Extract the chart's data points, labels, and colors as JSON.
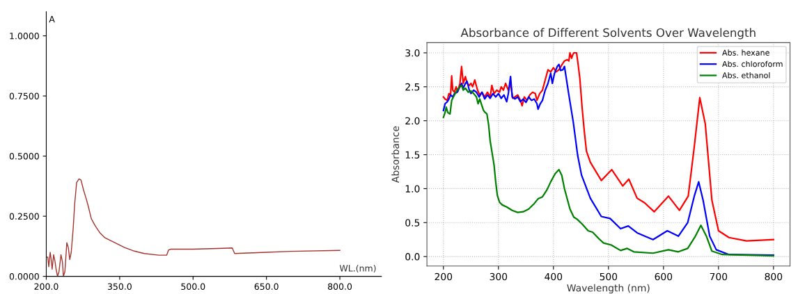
{
  "chart_data": [
    {
      "type": "line",
      "xlabel": "WL.(nm)",
      "ylabel": "A",
      "xlim": [
        200,
        885
      ],
      "ylim": [
        0,
        1.1
      ],
      "grid": false,
      "legend": false,
      "xticks": [
        {
          "value": 200,
          "label": "200.0"
        },
        {
          "value": 350,
          "label": "350.0"
        },
        {
          "value": 500,
          "label": "500.0"
        },
        {
          "value": 650,
          "label": "650.0"
        },
        {
          "value": 800,
          "label": "800.0"
        }
      ],
      "yticks": [
        {
          "value": 0,
          "label": "0.0000"
        },
        {
          "value": 0.25,
          "label": "0.2500"
        },
        {
          "value": 0.5,
          "label": "0.5000"
        },
        {
          "value": 0.75,
          "label": "0.7500"
        },
        {
          "value": 1.0,
          "label": "1.0000"
        }
      ],
      "x": [
        200,
        203,
        205,
        208,
        210,
        212,
        215,
        218,
        220,
        223,
        226,
        230,
        233,
        235,
        238,
        242,
        245,
        248,
        251,
        255,
        258,
        262,
        267,
        271,
        276,
        282,
        286,
        292,
        300,
        310,
        320,
        340,
        360,
        380,
        400,
        430,
        446,
        450,
        455,
        500,
        550,
        580,
        585,
        650,
        700,
        800
      ],
      "series": [
        {
          "color": "#a3322c",
          "values": [
            0.08,
            0.08,
            0.04,
            0.1,
            0.07,
            0.03,
            0.09,
            0.06,
            0.03,
            0.0,
            0.02,
            0.09,
            0.06,
            0.0,
            0.02,
            0.14,
            0.12,
            0.07,
            0.1,
            0.2,
            0.3,
            0.39,
            0.405,
            0.4,
            0.36,
            0.32,
            0.29,
            0.24,
            0.21,
            0.18,
            0.16,
            0.14,
            0.12,
            0.105,
            0.095,
            0.088,
            0.088,
            0.11,
            0.113,
            0.113,
            0.116,
            0.118,
            0.095,
            0.1,
            0.104,
            0.108
          ]
        }
      ]
    },
    {
      "type": "line",
      "title": "Absorbance of Different Solvents Over Wavelength",
      "xlabel": "Wavelength (nm)",
      "ylabel": "Absorbance",
      "xlim": [
        170,
        830
      ],
      "ylim": [
        -0.14,
        3.15
      ],
      "grid": true,
      "legend": "top right",
      "xticks": [
        200,
        300,
        400,
        500,
        600,
        700,
        800
      ],
      "yticks": [
        {
          "value": 0,
          "label": "0.0"
        },
        {
          "value": 0.5,
          "label": "0.5"
        },
        {
          "value": 1.0,
          "label": "1.0"
        },
        {
          "value": 1.5,
          "label": "1.5"
        },
        {
          "value": 2.0,
          "label": "2.0"
        },
        {
          "value": 2.5,
          "label": "2.5"
        },
        {
          "value": 3.0,
          "label": "3.0"
        }
      ],
      "series": [
        {
          "name": "Abs. hexane",
          "color": "#ff0000",
          "x": [
            200,
            203,
            207,
            210,
            213,
            215,
            217,
            220,
            223,
            226,
            230,
            233,
            236,
            240,
            243,
            247,
            250,
            253,
            257,
            262,
            266,
            270,
            275,
            280,
            285,
            288,
            292,
            297,
            302,
            305,
            309,
            313,
            318,
            322,
            326,
            330,
            335,
            340,
            343,
            347,
            352,
            357,
            362,
            367,
            370,
            375,
            380,
            385,
            390,
            395,
            400,
            405,
            410,
            415,
            420,
            425,
            428,
            430,
            433,
            435,
            437,
            442,
            445,
            448,
            452,
            456,
            460,
            467,
            487,
            506,
            526,
            537,
            552,
            566,
            583,
            609,
            629,
            645,
            656,
            666,
            676,
            688,
            700,
            719,
            751,
            800
          ],
          "values": [
            2.35,
            2.32,
            2.3,
            2.4,
            2.38,
            2.66,
            2.45,
            2.42,
            2.5,
            2.43,
            2.55,
            2.8,
            2.55,
            2.65,
            2.55,
            2.52,
            2.55,
            2.5,
            2.6,
            2.45,
            2.38,
            2.42,
            2.35,
            2.42,
            2.35,
            2.52,
            2.4,
            2.45,
            2.42,
            2.5,
            2.45,
            2.55,
            2.45,
            2.55,
            2.33,
            2.35,
            2.38,
            2.3,
            2.22,
            2.35,
            2.3,
            2.38,
            2.42,
            2.4,
            2.3,
            2.4,
            2.45,
            2.6,
            2.75,
            2.72,
            2.78,
            2.72,
            2.75,
            2.82,
            2.88,
            2.9,
            2.88,
            3.0,
            2.92,
            2.97,
            3.0,
            3.0,
            2.82,
            2.62,
            2.2,
            1.85,
            1.55,
            1.39,
            1.12,
            1.28,
            1.04,
            1.14,
            0.86,
            0.79,
            0.66,
            0.89,
            0.68,
            0.89,
            1.62,
            2.34,
            1.95,
            0.83,
            0.38,
            0.28,
            0.23,
            0.25
          ]
        },
        {
          "name": "Abs. chloroform",
          "color": "#0000ff",
          "x": [
            200,
            203,
            207,
            210,
            213,
            217,
            220,
            225,
            230,
            233,
            236,
            240,
            243,
            247,
            250,
            255,
            260,
            265,
            270,
            275,
            280,
            285,
            290,
            295,
            300,
            305,
            310,
            315,
            318,
            322,
            325,
            330,
            335,
            340,
            345,
            350,
            355,
            360,
            365,
            370,
            372,
            376,
            380,
            385,
            390,
            395,
            398,
            402,
            407,
            410,
            413,
            417,
            420,
            428,
            436,
            444,
            451,
            467,
            487,
            503,
            522,
            536,
            552,
            566,
            581,
            607,
            627,
            644,
            656,
            664,
            672,
            684,
            696,
            719,
            800
          ],
          "values": [
            2.15,
            2.25,
            2.28,
            2.32,
            2.38,
            2.35,
            2.4,
            2.42,
            2.5,
            2.55,
            2.48,
            2.55,
            2.58,
            2.45,
            2.4,
            2.45,
            2.42,
            2.35,
            2.42,
            2.32,
            2.38,
            2.33,
            2.4,
            2.35,
            2.4,
            2.33,
            2.38,
            2.28,
            2.4,
            2.65,
            2.35,
            2.32,
            2.35,
            2.28,
            2.32,
            2.27,
            2.35,
            2.3,
            2.32,
            2.25,
            2.17,
            2.25,
            2.3,
            2.45,
            2.55,
            2.7,
            2.55,
            2.7,
            2.8,
            2.83,
            2.74,
            2.75,
            2.8,
            2.38,
            1.98,
            1.49,
            1.2,
            0.86,
            0.59,
            0.56,
            0.41,
            0.45,
            0.35,
            0.3,
            0.25,
            0.38,
            0.3,
            0.5,
            0.89,
            1.1,
            0.83,
            0.3,
            0.1,
            0.03,
            0.02
          ]
        },
        {
          "name": "Abs. ethanol",
          "color": "#008000",
          "x": [
            200,
            203,
            205,
            208,
            212,
            215,
            220,
            225,
            230,
            233,
            236,
            240,
            245,
            250,
            255,
            260,
            263,
            266,
            270,
            273,
            276,
            279,
            282,
            285,
            288,
            292,
            295,
            298,
            302,
            307,
            315,
            325,
            335,
            345,
            355,
            365,
            372,
            380,
            388,
            395,
            403,
            410,
            415,
            420,
            425,
            430,
            437,
            443,
            452,
            463,
            471,
            483,
            491,
            505,
            522,
            534,
            546,
            581,
            609,
            627,
            644,
            658,
            668,
            678,
            688,
            707,
            800
          ],
          "values": [
            2.05,
            2.12,
            2.2,
            2.12,
            2.1,
            2.3,
            2.38,
            2.45,
            2.5,
            2.52,
            2.45,
            2.48,
            2.42,
            2.44,
            2.4,
            2.35,
            2.25,
            2.32,
            2.22,
            2.15,
            2.12,
            2.1,
            1.95,
            1.7,
            1.55,
            1.35,
            1.1,
            0.9,
            0.8,
            0.76,
            0.73,
            0.68,
            0.65,
            0.66,
            0.7,
            0.78,
            0.85,
            0.88,
            0.98,
            1.1,
            1.22,
            1.28,
            1.2,
            1.0,
            0.85,
            0.7,
            0.58,
            0.55,
            0.48,
            0.38,
            0.36,
            0.26,
            0.2,
            0.17,
            0.09,
            0.12,
            0.07,
            0.05,
            0.1,
            0.07,
            0.12,
            0.3,
            0.46,
            0.3,
            0.08,
            0.03,
            0.01
          ]
        }
      ]
    }
  ]
}
